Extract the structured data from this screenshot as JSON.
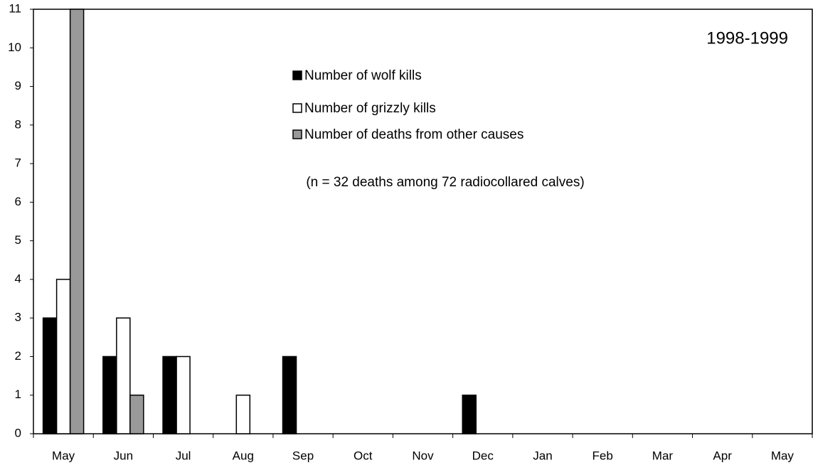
{
  "chart_data": {
    "type": "bar",
    "annotations": [
      "1998-1999",
      "(n = 32 deaths among 72 radiocollared calves)"
    ],
    "categories": [
      "May",
      "Jun",
      "Jul",
      "Aug",
      "Sep",
      "Oct",
      "Nov",
      "Dec",
      "Jan",
      "Feb",
      "Mar",
      "Apr",
      "May"
    ],
    "series": [
      {
        "name": "Number of wolf kills",
        "color": "#000000",
        "values": [
          3,
          2,
          2,
          0,
          2,
          0,
          0,
          1,
          0,
          0,
          0,
          0,
          0
        ]
      },
      {
        "name": "Number of grizzly kills",
        "color": "#ffffff",
        "values": [
          4,
          3,
          2,
          1,
          0,
          0,
          0,
          0,
          0,
          0,
          0,
          0,
          0
        ]
      },
      {
        "name": "Number of deaths from other causes",
        "color": "#999999",
        "values": [
          11,
          1,
          0,
          0,
          0,
          0,
          0,
          0,
          0,
          0,
          0,
          0,
          0
        ]
      }
    ],
    "ylim": [
      0,
      11
    ],
    "yticks": [
      0,
      1,
      2,
      3,
      4,
      5,
      6,
      7,
      8,
      9,
      10,
      11
    ],
    "grid": false
  }
}
